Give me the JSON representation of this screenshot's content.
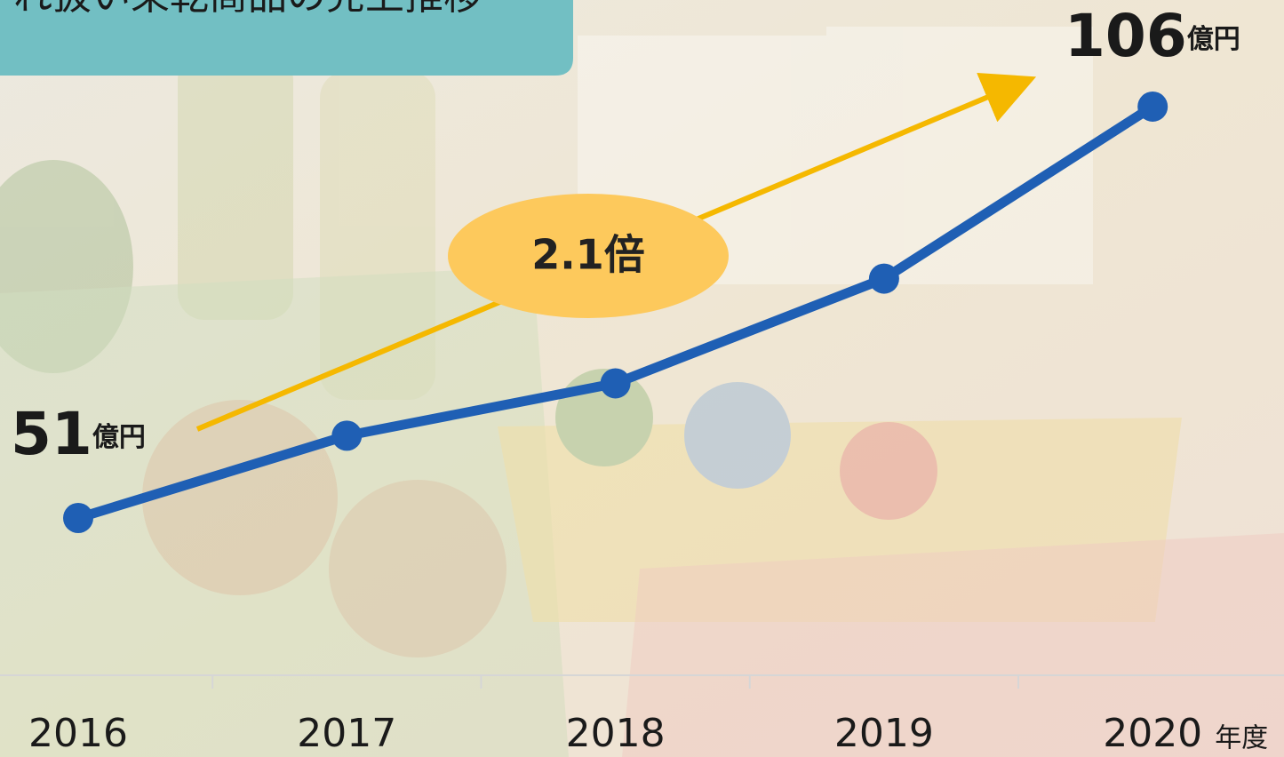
{
  "chart_data": {
    "type": "line",
    "title": "れ扱い果乾商品の売上推移",
    "categories": [
      "2016",
      "2017",
      "2018",
      "2019",
      "2020"
    ],
    "x_unit": "年度",
    "series": [
      {
        "name": "売上",
        "color": "#1f5fb4",
        "values": [
          51,
          62,
          69,
          83,
          106
        ]
      }
    ],
    "unit": "億円",
    "annotation": "2.1倍",
    "ylim": [
      40,
      110
    ]
  }
}
